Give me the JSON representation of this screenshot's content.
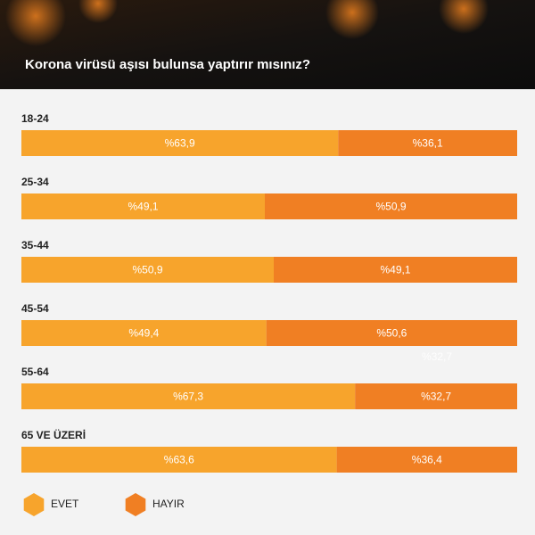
{
  "chart_data": {
    "type": "stacked-bar-horizontal",
    "title": "Korona virüsü aşısı bulunsa yaptırır mısınız?",
    "categories": [
      "18-24",
      "25-34",
      "35-44",
      "45-54",
      "55-64",
      "65 VE ÜZERİ"
    ],
    "xlim": [
      0,
      100
    ],
    "series": [
      {
        "name": "EVET",
        "color": "#f7a42c",
        "values": [
          63.9,
          49.1,
          50.9,
          49.4,
          67.3,
          63.6
        ],
        "value_labels": [
          "%63,9",
          "%49,1",
          "%50,9",
          "%49,4",
          "%67,3",
          "%63,6"
        ]
      },
      {
        "name": "HAYIR",
        "color": "#f07f23",
        "values": [
          36.1,
          50.9,
          49.1,
          50.6,
          32.7,
          36.4
        ],
        "value_labels": [
          "%36,1",
          "%50,9",
          "%49,1",
          "%50,6",
          "%32,7",
          "%36,4"
        ]
      }
    ],
    "annotation": "%32,7"
  }
}
